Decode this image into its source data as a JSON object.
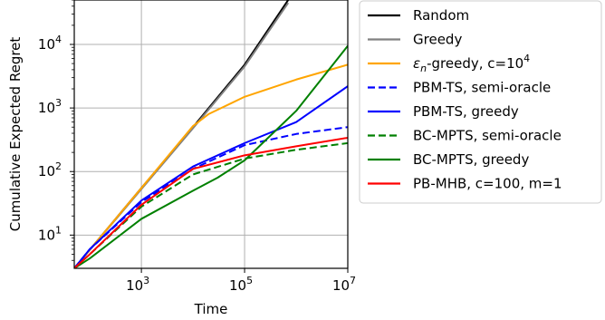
{
  "chart_data": {
    "type": "line",
    "title": "",
    "xlabel": "Time",
    "ylabel": "Cumulative Expected Regret",
    "xscale": "log",
    "yscale": "log",
    "xlim": [
      50,
      10000000
    ],
    "ylim": [
      3,
      50000
    ],
    "xticks": [
      {
        "value": 1000,
        "label": "10",
        "exp": "3"
      },
      {
        "value": 100000,
        "label": "10",
        "exp": "5"
      },
      {
        "value": 10000000,
        "label": "10",
        "exp": "7"
      }
    ],
    "yticks": [
      {
        "value": 10,
        "label": "10",
        "exp": "1"
      },
      {
        "value": 100,
        "label": "10",
        "exp": "2"
      },
      {
        "value": 1000,
        "label": "10",
        "exp": "3"
      },
      {
        "value": 10000,
        "label": "10",
        "exp": "4"
      }
    ],
    "grid": true,
    "legend_position": "outside-right",
    "series": [
      {
        "name": "Random",
        "color": "#000000",
        "dash": "solid",
        "points": [
          [
            50,
            3
          ],
          [
            1000,
            55
          ],
          [
            10000,
            500
          ],
          [
            100000,
            4800
          ],
          [
            700000,
            50000
          ]
        ]
      },
      {
        "name": "Greedy",
        "color": "#808080",
        "dash": "solid",
        "points": [
          [
            50,
            3
          ],
          [
            1000,
            53
          ],
          [
            10000,
            480
          ],
          [
            100000,
            4500
          ],
          [
            700000,
            45000
          ]
        ]
      },
      {
        "name_prefix": "ε",
        "name_sub": "n",
        "name_mid": "-greedy, c=10",
        "name_sup": "4",
        "color": "#ffa500",
        "dash": "solid",
        "points": [
          [
            50,
            3
          ],
          [
            1000,
            55
          ],
          [
            10000,
            520
          ],
          [
            20000,
            800
          ],
          [
            100000,
            1500
          ],
          [
            1000000,
            2800
          ],
          [
            10000000,
            4800
          ]
        ]
      },
      {
        "name": "PBM-TS, semi-oracle",
        "color": "#0000ff",
        "dash": "dashed",
        "points": [
          [
            50,
            3
          ],
          [
            100,
            6
          ],
          [
            1000,
            33
          ],
          [
            10000,
            110
          ],
          [
            100000,
            260
          ],
          [
            1000000,
            390
          ],
          [
            10000000,
            500
          ]
        ]
      },
      {
        "name": "PBM-TS, greedy",
        "color": "#0000ff",
        "dash": "solid",
        "points": [
          [
            50,
            3
          ],
          [
            100,
            6
          ],
          [
            1000,
            35
          ],
          [
            10000,
            120
          ],
          [
            100000,
            280
          ],
          [
            1000000,
            600
          ],
          [
            10000000,
            2200
          ]
        ]
      },
      {
        "name": "BC-MPTS, semi-oracle",
        "color": "#008000",
        "dash": "dashed",
        "points": [
          [
            50,
            3
          ],
          [
            100,
            5
          ],
          [
            1000,
            28
          ],
          [
            10000,
            90
          ],
          [
            100000,
            160
          ],
          [
            1000000,
            220
          ],
          [
            10000000,
            280
          ]
        ]
      },
      {
        "name": "BC-MPTS, greedy",
        "color": "#008000",
        "dash": "solid",
        "points": [
          [
            50,
            3
          ],
          [
            100,
            4.3
          ],
          [
            1000,
            18
          ],
          [
            10000,
            50
          ],
          [
            30000,
            80
          ],
          [
            100000,
            150
          ],
          [
            1000000,
            900
          ],
          [
            10000000,
            9500
          ]
        ]
      },
      {
        "name": "PB-MHB, c=100, m=1",
        "color": "#ff0000",
        "dash": "solid",
        "points": [
          [
            50,
            3
          ],
          [
            100,
            5
          ],
          [
            1000,
            30
          ],
          [
            10000,
            110
          ],
          [
            100000,
            180
          ],
          [
            1000000,
            250
          ],
          [
            10000000,
            340
          ]
        ]
      }
    ]
  }
}
